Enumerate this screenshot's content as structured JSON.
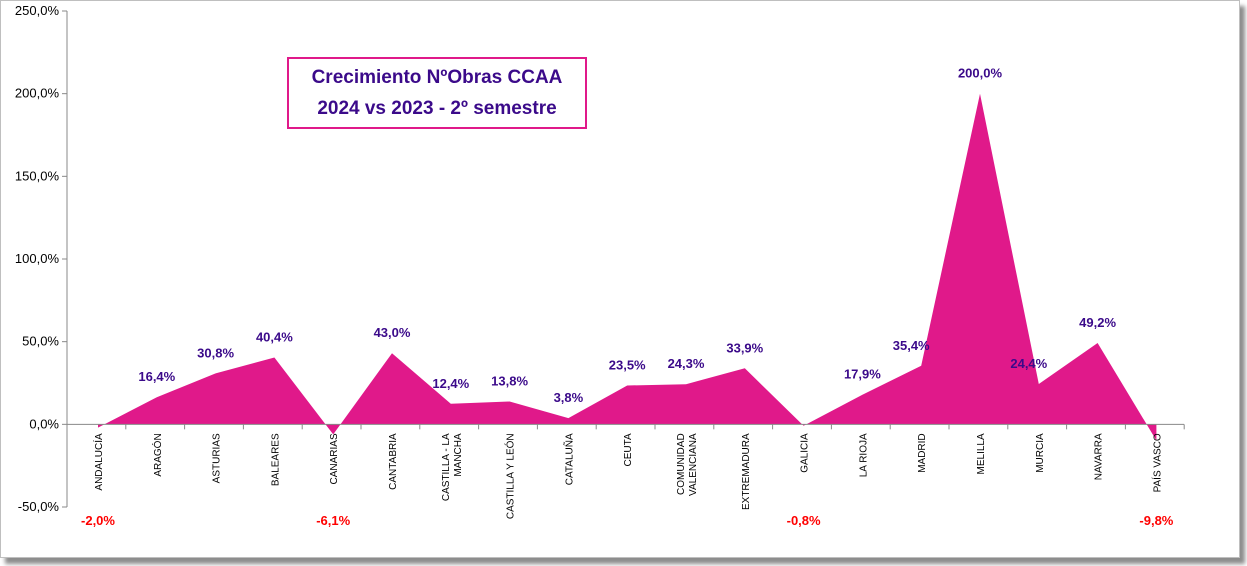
{
  "chart_data": {
    "type": "area",
    "title_line1": "Crecimiento NºObras CCAA",
    "title_line2": "2024 vs 2023 - 2º semestre",
    "categories": [
      "ANDALUCÍA",
      "ARAGÓN",
      "ASTURIAS",
      "BALEARES",
      "CANARIAS",
      "CANTABRIA",
      "CASTILLA - LA MANCHA",
      "CASTILLA Y LEÓN",
      "CATALUÑA",
      "CEUTA",
      "COMUNIDAD VALENCIANA",
      "EXTREMADURA",
      "GALICIA",
      "LA RIOJA",
      "MADRID",
      "MELILLA",
      "MURCIA",
      "NAVARRA",
      "PAÍS VASCO"
    ],
    "values": [
      -2.0,
      16.4,
      30.8,
      40.4,
      -6.1,
      43.0,
      12.4,
      13.8,
      3.8,
      23.5,
      24.3,
      33.9,
      -0.8,
      17.9,
      35.4,
      200.0,
      24.4,
      49.2,
      -9.8
    ],
    "labels": [
      "-2,0%",
      "16,4%",
      "30,8%",
      "40,4%",
      "-6,1%",
      "43,0%",
      "12,4%",
      "13,8%",
      "3,8%",
      "23,5%",
      "24,3%",
      "33,9%",
      "-0,8%",
      "17,9%",
      "35,4%",
      "200,0%",
      "24,4%",
      "49,2%",
      "-9,8%"
    ],
    "ylim": [
      -50,
      250
    ],
    "yticks": [
      "-50,0%",
      "0,0%",
      "50,0%",
      "100,0%",
      "150,0%",
      "200,0%",
      "250,0%"
    ],
    "ytick_values": [
      -50,
      0,
      50,
      100,
      150,
      200,
      250
    ],
    "grid": false,
    "legend": "none",
    "colors": {
      "area": "#e0198a",
      "positive_label": "#3b0a8a",
      "negative_label": "#ff0000",
      "axis": "#888888"
    }
  }
}
